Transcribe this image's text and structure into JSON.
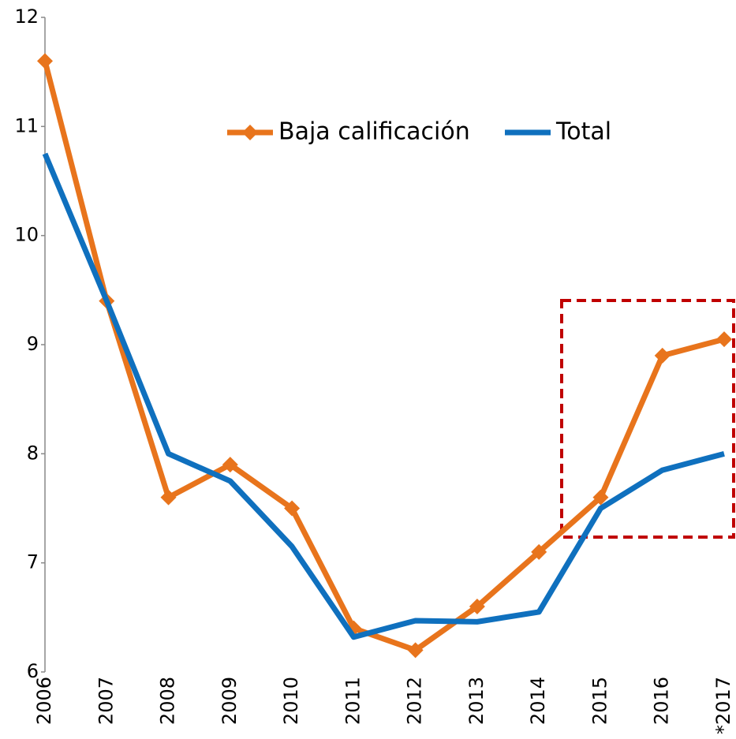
{
  "chart_data": {
    "type": "line",
    "categories": [
      "2006",
      "2007",
      "2008",
      "2009",
      "2010",
      "2011",
      "2012",
      "2013",
      "2014",
      "2015",
      "2016",
      "*2017"
    ],
    "series": [
      {
        "name": "Baja calificación",
        "color": "#e8741c",
        "marker": "diamond",
        "values": [
          11.6,
          9.4,
          7.6,
          7.9,
          7.5,
          6.4,
          6.2,
          6.6,
          7.1,
          7.6,
          8.9,
          9.05
        ]
      },
      {
        "name": "Total",
        "color": "#0f70be",
        "values": [
          10.75,
          9.4,
          8.0,
          7.75,
          7.15,
          6.32,
          6.47,
          6.46,
          6.55,
          7.5,
          7.85,
          8.0
        ]
      }
    ],
    "ylim": [
      6,
      12
    ],
    "yticks": [
      6,
      7,
      8,
      9,
      10,
      11,
      12
    ],
    "grid": false
  }
}
